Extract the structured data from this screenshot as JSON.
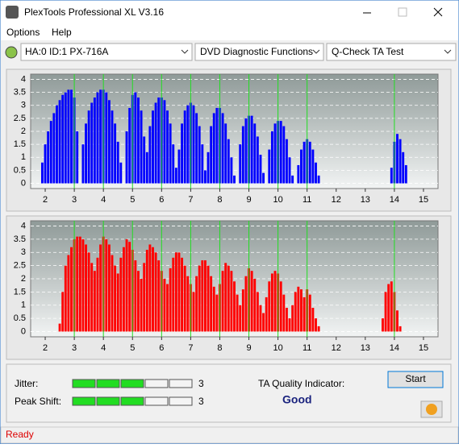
{
  "window": {
    "title": "PlexTools Professional XL V3.16",
    "menu": [
      "Options",
      "Help"
    ],
    "drive": "HA:0 ID:1  PX-716A",
    "function": "DVD Diagnostic Functions",
    "test": "Q-Check TA Test"
  },
  "chart_data": [
    {
      "type": "bar",
      "color": "#0000ff",
      "xlim": [
        1.5,
        15.5
      ],
      "xticks": [
        2,
        3,
        4,
        5,
        6,
        7,
        8,
        9,
        10,
        11,
        12,
        13,
        14,
        15
      ],
      "ylim": [
        -0.2,
        4.2
      ],
      "yticks": [
        0,
        0.5,
        1,
        1.5,
        2,
        2.5,
        3,
        3.5,
        4
      ],
      "grid": true,
      "markers": [
        3,
        4,
        5,
        6,
        7,
        8,
        9,
        10,
        11,
        14
      ],
      "x": [
        1.9,
        2,
        2.1,
        2.2,
        2.3,
        2.4,
        2.5,
        2.6,
        2.7,
        2.8,
        2.9,
        3,
        3.1,
        3.2,
        3.3,
        3.4,
        3.5,
        3.6,
        3.7,
        3.8,
        3.9,
        4,
        4.1,
        4.2,
        4.3,
        4.4,
        4.5,
        4.6,
        4.7,
        4.8,
        4.9,
        5,
        5.1,
        5.2,
        5.3,
        5.4,
        5.5,
        5.6,
        5.7,
        5.8,
        5.9,
        6,
        6.1,
        6.2,
        6.3,
        6.4,
        6.5,
        6.6,
        6.7,
        6.8,
        6.9,
        7,
        7.1,
        7.2,
        7.3,
        7.4,
        7.5,
        7.6,
        7.7,
        7.8,
        7.9,
        8,
        8.1,
        8.2,
        8.3,
        8.4,
        8.5,
        8.6,
        8.7,
        8.8,
        8.9,
        9,
        9.1,
        9.2,
        9.3,
        9.4,
        9.5,
        9.6,
        9.7,
        9.8,
        9.9,
        10,
        10.1,
        10.2,
        10.3,
        10.4,
        10.5,
        10.6,
        10.7,
        10.8,
        10.9,
        11,
        11.1,
        11.2,
        11.3,
        11.4,
        13.9,
        14,
        14.1,
        14.2,
        14.3,
        14.4
      ],
      "values": [
        0.8,
        1.5,
        2,
        2.4,
        2.7,
        3,
        3.2,
        3.4,
        3.5,
        3.6,
        3.6,
        3.3,
        2,
        0,
        1.5,
        2.3,
        2.8,
        3.1,
        3.3,
        3.5,
        3.6,
        3.6,
        3.5,
        3.2,
        2.8,
        2.3,
        1.6,
        0.8,
        0,
        2,
        2.9,
        3.4,
        3.5,
        3.3,
        2.8,
        1.8,
        1.2,
        2.2,
        2.8,
        3.1,
        3.3,
        3.3,
        3.2,
        2.8,
        2.3,
        1.5,
        0.6,
        1.3,
        2.3,
        2.8,
        3,
        3.1,
        3,
        2.7,
        2.2,
        1.5,
        0.5,
        1.2,
        2.2,
        2.7,
        2.9,
        2.9,
        2.7,
        2.3,
        1.7,
        1,
        0.3,
        0,
        1.5,
        2.2,
        2.5,
        2.6,
        2.6,
        2.3,
        1.8,
        1.1,
        0.4,
        0,
        1.3,
        2,
        2.3,
        2.4,
        2.4,
        2.2,
        1.7,
        1,
        0.3,
        0,
        0.7,
        1.3,
        1.6,
        1.7,
        1.6,
        1.3,
        0.8,
        0.3,
        0.6,
        1.6,
        1.9,
        1.7,
        1.2,
        0.7
      ]
    },
    {
      "type": "bar",
      "color": "#ff0000",
      "xlim": [
        1.5,
        15.5
      ],
      "xticks": [
        2,
        3,
        4,
        5,
        6,
        7,
        8,
        9,
        10,
        11,
        12,
        13,
        14,
        15
      ],
      "ylim": [
        -0.2,
        4.2
      ],
      "yticks": [
        0,
        0.5,
        1,
        1.5,
        2,
        2.5,
        3,
        3.5,
        4
      ],
      "grid": true,
      "markers": [
        3,
        4,
        5,
        6,
        7,
        8,
        9,
        10,
        11,
        14
      ],
      "x": [
        2.5,
        2.6,
        2.7,
        2.8,
        2.9,
        3,
        3.1,
        3.2,
        3.3,
        3.4,
        3.5,
        3.6,
        3.7,
        3.8,
        3.9,
        4,
        4.1,
        4.2,
        4.3,
        4.4,
        4.5,
        4.6,
        4.7,
        4.8,
        4.9,
        5,
        5.1,
        5.2,
        5.3,
        5.4,
        5.5,
        5.6,
        5.7,
        5.8,
        5.9,
        6,
        6.1,
        6.2,
        6.3,
        6.4,
        6.5,
        6.6,
        6.7,
        6.8,
        6.9,
        7,
        7.1,
        7.2,
        7.3,
        7.4,
        7.5,
        7.6,
        7.7,
        7.8,
        7.9,
        8,
        8.1,
        8.2,
        8.3,
        8.4,
        8.5,
        8.6,
        8.7,
        8.8,
        8.9,
        9,
        9.1,
        9.2,
        9.3,
        9.4,
        9.5,
        9.6,
        9.7,
        9.8,
        9.9,
        10,
        10.1,
        10.2,
        10.3,
        10.4,
        10.5,
        10.6,
        10.7,
        10.8,
        10.9,
        11,
        11.1,
        11.2,
        11.3,
        11.4,
        13.6,
        13.7,
        13.8,
        13.9,
        14,
        14.1,
        14.2
      ],
      "values": [
        0.3,
        1.5,
        2.5,
        2.9,
        3.2,
        3.5,
        3.6,
        3.6,
        3.5,
        3.3,
        3,
        2.6,
        2.3,
        2.8,
        3.3,
        3.6,
        3.5,
        3.3,
        2.9,
        2.5,
        2.2,
        2.8,
        3.2,
        3.5,
        3.4,
        3.1,
        2.7,
        2.3,
        2,
        2.6,
        3.1,
        3.3,
        3.2,
        3,
        2.7,
        2.3,
        2,
        1.8,
        2.4,
        2.8,
        3,
        3,
        2.8,
        2.5,
        2.1,
        1.8,
        1.5,
        2.1,
        2.5,
        2.7,
        2.7,
        2.5,
        2.1,
        1.7,
        1.4,
        1.8,
        2.3,
        2.6,
        2.5,
        2.3,
        1.9,
        1.4,
        1,
        1.6,
        2.1,
        2.4,
        2.3,
        2,
        1.5,
        1,
        0.7,
        1.3,
        1.9,
        2.2,
        2.3,
        2.2,
        1.9,
        1.4,
        0.9,
        0.5,
        1,
        1.5,
        1.7,
        1.6,
        1.3,
        1.6,
        1.4,
        0.9,
        0.5,
        0.2,
        0.5,
        1.5,
        1.8,
        1.9,
        1.5,
        0.8,
        0.2
      ]
    }
  ],
  "panel": {
    "jitter": {
      "label": "Jitter:",
      "value": 3
    },
    "peak_shift": {
      "label": "Peak Shift:",
      "value": 3
    },
    "quality_label": "TA Quality Indicator:",
    "quality": "Good",
    "start": "Start"
  },
  "status": "Ready"
}
